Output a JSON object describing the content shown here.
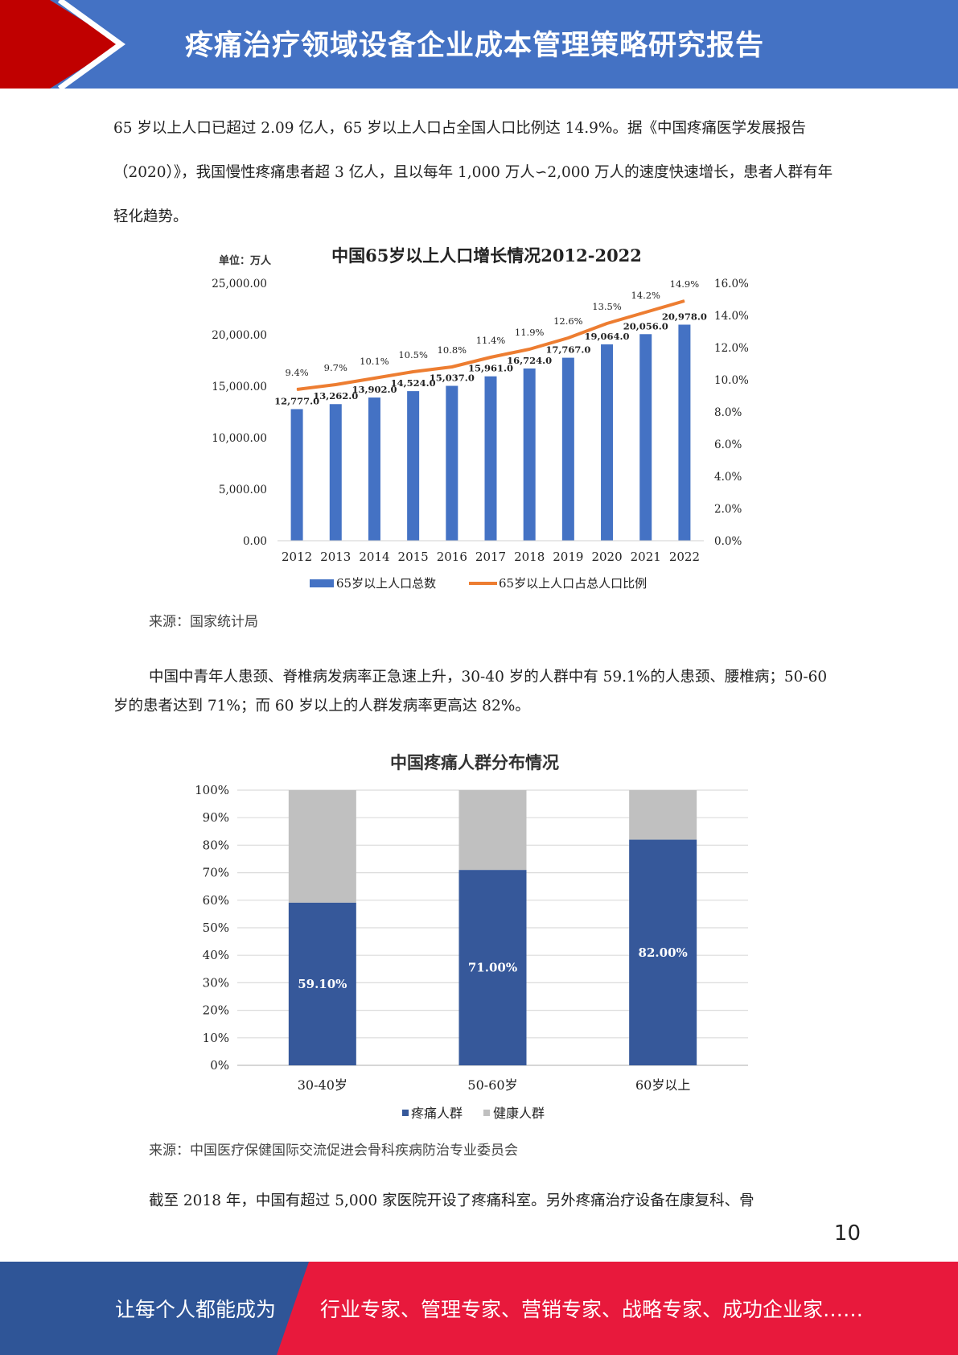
{
  "header": {
    "title": "疼痛治疗领域设备企业成本管理策略研究报告",
    "colors": {
      "band": "#4472c4",
      "accent": "#c00000"
    }
  },
  "paragraphs": [
    "65 岁以上人口已超过 2.09 亿人，65 岁以上人口占全国人口比例达 14.9%。据《中国疼痛医学发展报告（2020）》，我国慢性疼痛患者超 3 亿人，且以每年 1,000 万人∽2,000 万人的速度快速增长，患者人群有年轻化趋势。",
    "中国中青年人患颈、脊椎病发病率正急速上升，30-40 岁的人群中有 59.1%的人患颈、腰椎病；50-60 岁的患者达到 71%；而 60 岁以上的人群发病率更高达 82%。",
    "截至 2018 年，中国有超过 5,000 家医院开设了疼痛科室。另外疼痛治疗设备在康复科、骨"
  ],
  "chart_data": [
    {
      "type": "bar",
      "title": "中国65岁以上人口增长情况2012-2022",
      "unit_label": "单位：万人",
      "categories": [
        "2012",
        "2013",
        "2014",
        "2015",
        "2016",
        "2017",
        "2018",
        "2019",
        "2020",
        "2021",
        "2022"
      ],
      "series": [
        {
          "name": "65岁以上人口总数",
          "type": "bar",
          "axis": "left",
          "color": "#4472c4",
          "values": [
            12777.0,
            13262.0,
            13902.0,
            14524.0,
            15037.0,
            15961.0,
            16724.0,
            17767.0,
            19064.0,
            20056.0,
            20978.0
          ],
          "labels": [
            "12,777.0",
            "13,262.0",
            "13,902.0",
            "14,524.0",
            "15,037.0",
            "15,961.0",
            "16,724.0",
            "17,767.0",
            "19,064.0",
            "20,056.0",
            "20,978.0"
          ]
        },
        {
          "name": "65岁以上人口占总人口比例",
          "type": "line",
          "axis": "right",
          "color": "#ed7d31",
          "values": [
            9.4,
            9.7,
            10.1,
            10.5,
            10.8,
            11.4,
            11.9,
            12.6,
            13.5,
            14.2,
            14.9
          ],
          "labels": [
            "9.4%",
            "9.7%",
            "10.1%",
            "10.5%",
            "10.8%",
            "11.4%",
            "11.9%",
            "12.6%",
            "13.5%",
            "14.2%",
            "14.9%"
          ]
        }
      ],
      "ylim": [
        0,
        25000
      ],
      "y_ticks": [
        "25,000.00",
        "20,000.00",
        "15,000.00",
        "10,000.00",
        "5,000.00",
        "0.00"
      ],
      "y2lim": [
        0,
        16
      ],
      "y2_ticks": [
        "16.0%",
        "14.0%",
        "12.0%",
        "10.0%",
        "8.0%",
        "6.0%",
        "4.0%",
        "2.0%",
        "0.0%"
      ],
      "legend": "bottom",
      "source": "来源：国家统计局"
    },
    {
      "type": "bar",
      "stacked": true,
      "title": "中国疼痛人群分布情况",
      "categories": [
        "30-40岁",
        "50-60岁",
        "60岁以上"
      ],
      "series": [
        {
          "name": "疼痛人群",
          "color": "#36589a",
          "values": [
            59.1,
            71.0,
            82.0
          ],
          "labels": [
            "59.10%",
            "71.00%",
            "82.00%"
          ]
        },
        {
          "name": "健康人群",
          "color": "#c0c0c0",
          "values": [
            40.9,
            29.0,
            18.0
          ]
        }
      ],
      "ylim": [
        0,
        100
      ],
      "y_ticks": [
        "100%",
        "90%",
        "80%",
        "70%",
        "60%",
        "50%",
        "40%",
        "30%",
        "20%",
        "10%",
        "0%"
      ],
      "grid": true,
      "legend": "bottom",
      "source": "来源：中国医疗保健国际交流促进会骨科疾病防治专业委员会"
    }
  ],
  "page_number": "10",
  "footer": {
    "left_text": "让每个人都能成为",
    "right_text": "行业专家、管理专家、营销专家、战略专家、成功企业家……",
    "colors": {
      "blue": "#2f5597",
      "red": "#e8193c"
    }
  }
}
